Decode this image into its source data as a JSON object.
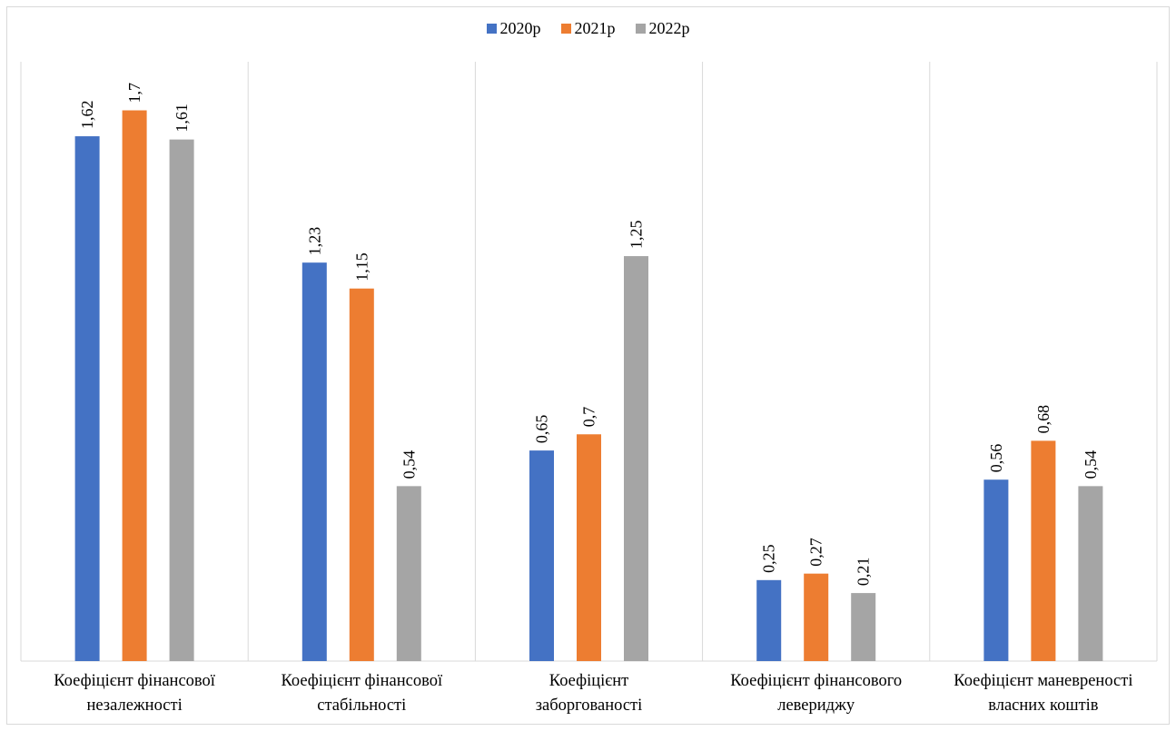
{
  "chart_data": {
    "type": "bar",
    "categories": [
      [
        "Коефіцієнт фінансової",
        "незалежності"
      ],
      [
        "Коефіцієнт фінансової",
        "стабільності"
      ],
      [
        "Коефіцієнт",
        "заборгованості"
      ],
      [
        "Коефіцієнт фінансового",
        "левериджу"
      ],
      [
        "Коефіцієнт маневреності",
        "власних коштів"
      ]
    ],
    "series": [
      {
        "name": "2020р",
        "color": "#4472c4",
        "values": [
          1.62,
          1.23,
          0.65,
          0.25,
          0.56
        ],
        "labels": [
          "1,62",
          "1,23",
          "0,65",
          "0,25",
          "0,56"
        ]
      },
      {
        "name": "2021р",
        "color": "#ed7d31",
        "values": [
          1.7,
          1.15,
          0.7,
          0.27,
          0.68
        ],
        "labels": [
          "1,7",
          "1,15",
          "0,7",
          "0,27",
          "0,68"
        ]
      },
      {
        "name": "2022р",
        "color": "#a5a5a5",
        "values": [
          1.61,
          0.54,
          1.25,
          0.21,
          0.54
        ],
        "labels": [
          "1,61",
          "0,54",
          "1,25",
          "0,21",
          "0,54"
        ]
      }
    ],
    "ylim": [
      0,
      1.85
    ],
    "legend": "top",
    "grid": "vertical category separators",
    "data_labels": "rotated vertical above bars"
  }
}
